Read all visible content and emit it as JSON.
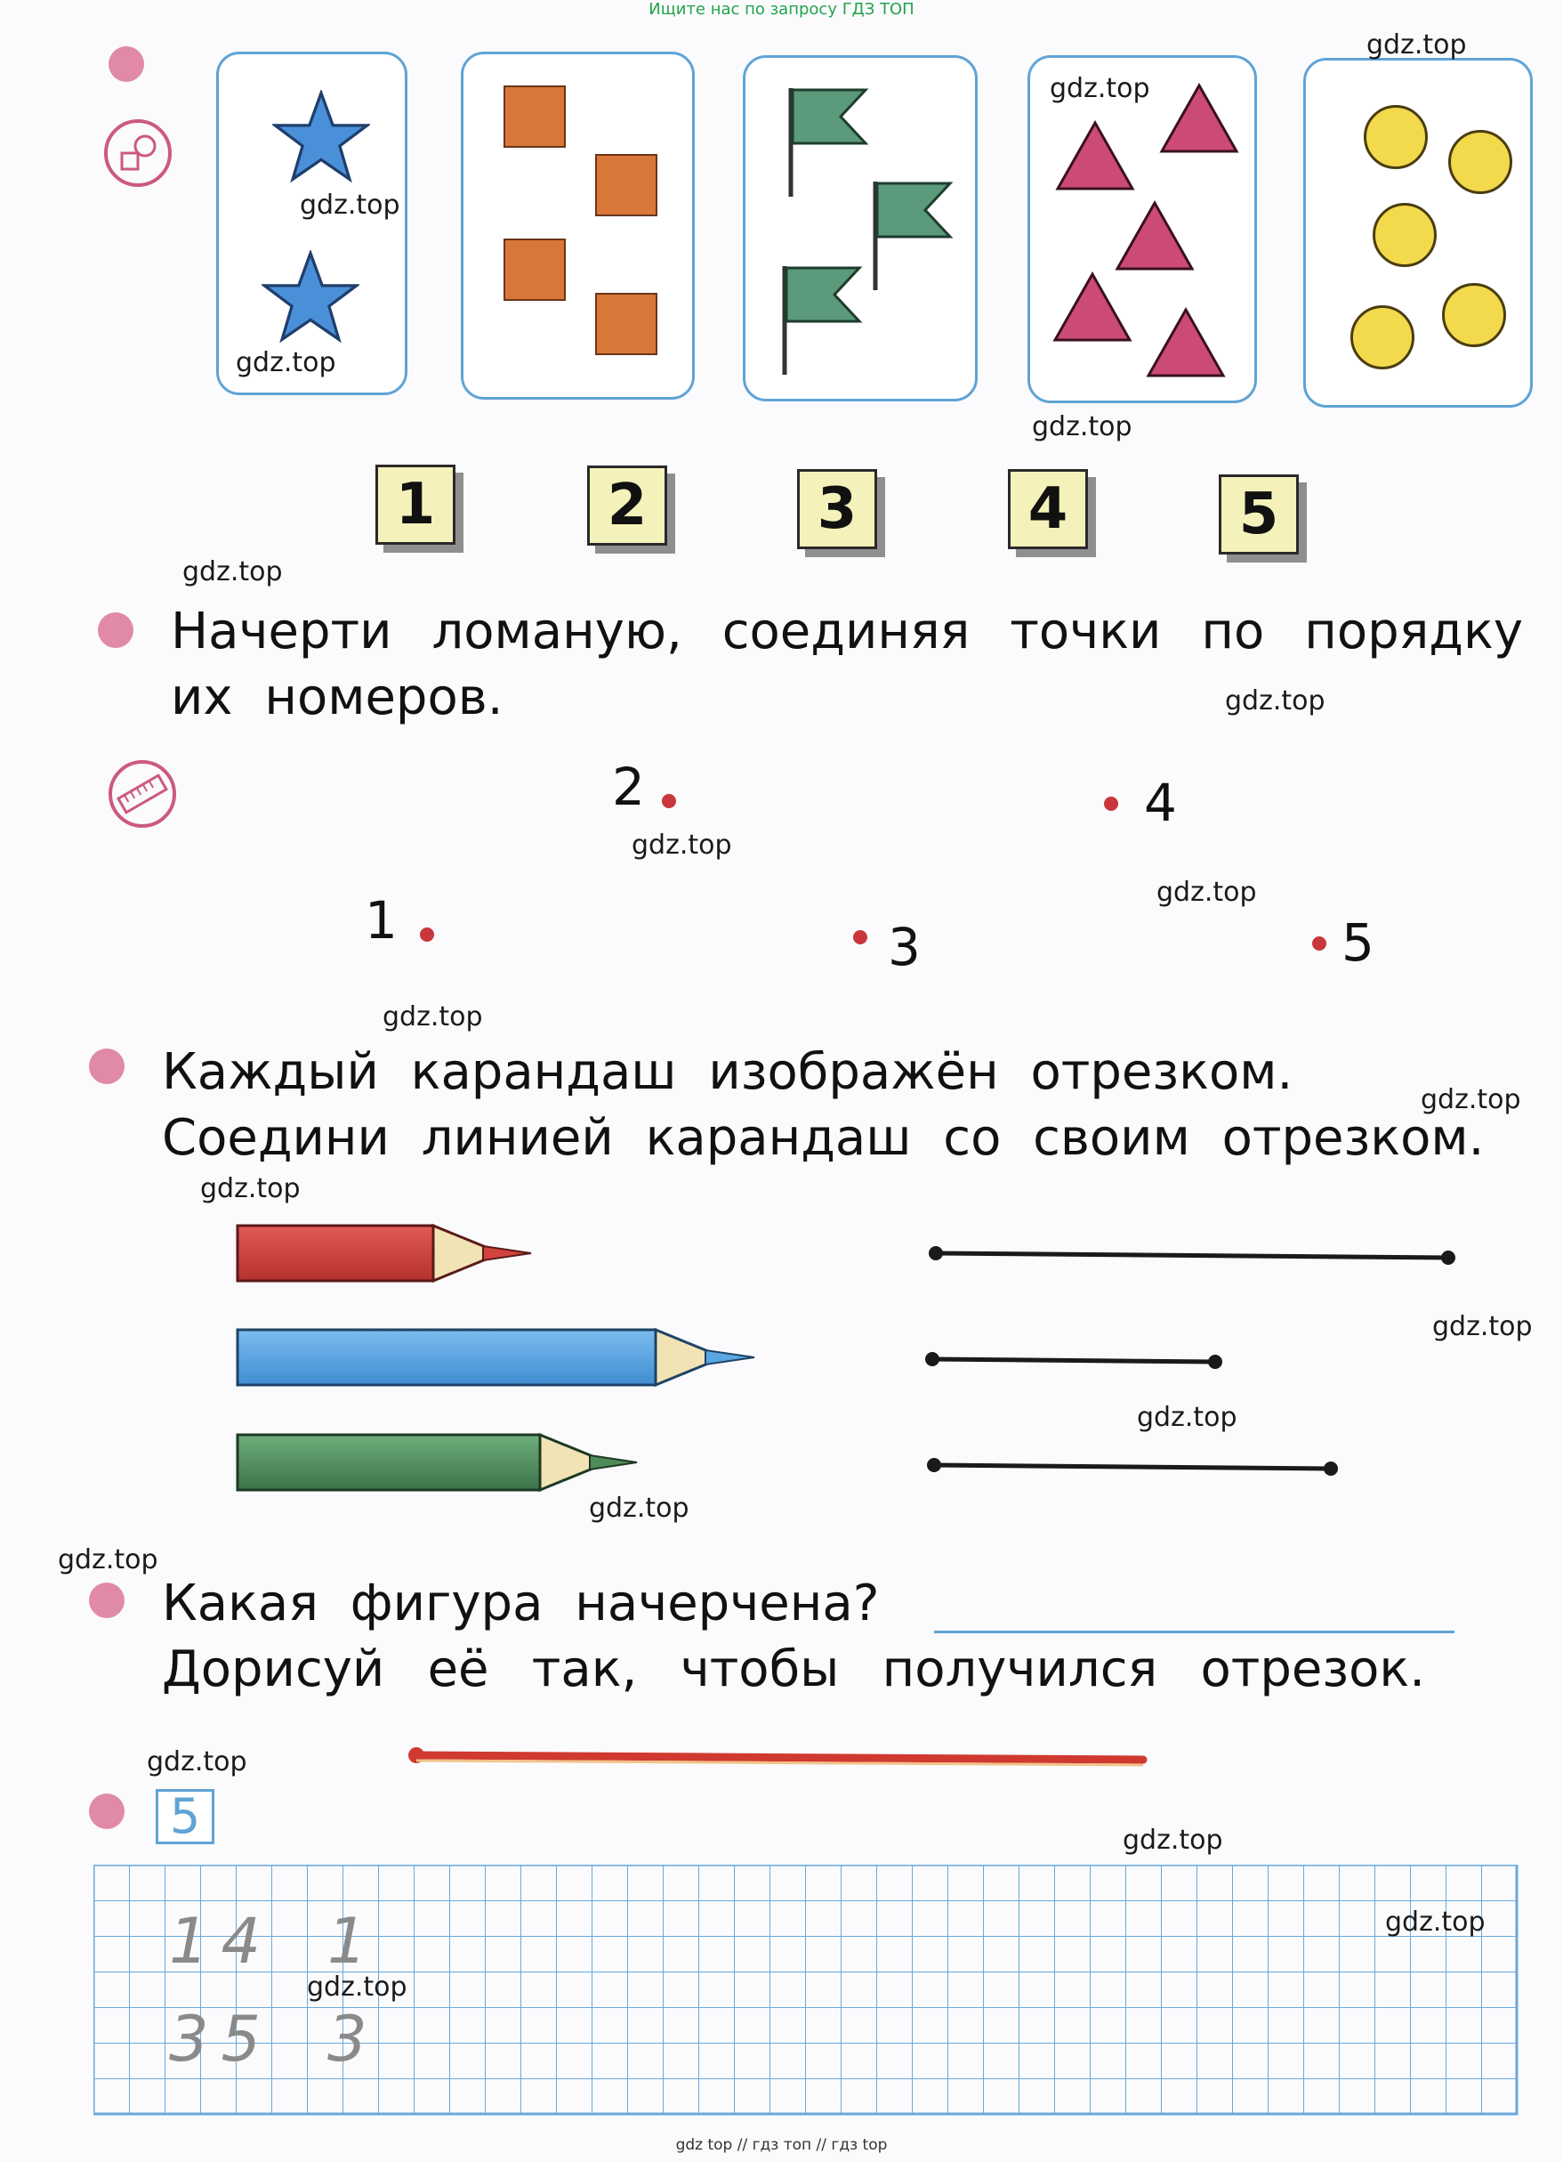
{
  "banners": {
    "top": "Ищите нас по запросу ГДЗ ТОП",
    "bottom": "gdz top // гдз топ // гдз top"
  },
  "watermark": "gdz.top",
  "number_cards": [
    "1",
    "2",
    "3",
    "4",
    "5"
  ],
  "tasks": {
    "polyline_line1": "Начерти ломаную, соединяя точки по порядку",
    "polyline_line2": "их номеров.",
    "pencils_line1": "Каждый карандаш изображён отрезком.",
    "pencils_line2": "Соедини линией карандаш со своим отрезком.",
    "figure_line1": "Какая фигура начерчена?",
    "figure_line2": "Дорисуй её так, чтобы получился отрезок."
  },
  "dot_labels": [
    "1",
    "2",
    "3",
    "4",
    "5"
  ],
  "task5_number": "5",
  "handwritten": {
    "row1_a": "14",
    "row1_b": "1",
    "row2_a": "35",
    "row2_b": "3"
  },
  "colors": {
    "frame": "#5fa3d6",
    "star": "#4a90d9",
    "square": "#d9763a",
    "flag": "#5b9a7a",
    "triangle": "#cc4a78",
    "circle": "#f3d94c",
    "bullet": "#e08aa6",
    "pencil_red": "#d2433e",
    "pencil_blue": "#5aa6e2",
    "pencil_green": "#4e8a5a",
    "segment_red": "#d0392f",
    "grid": "#6aa8dc"
  }
}
